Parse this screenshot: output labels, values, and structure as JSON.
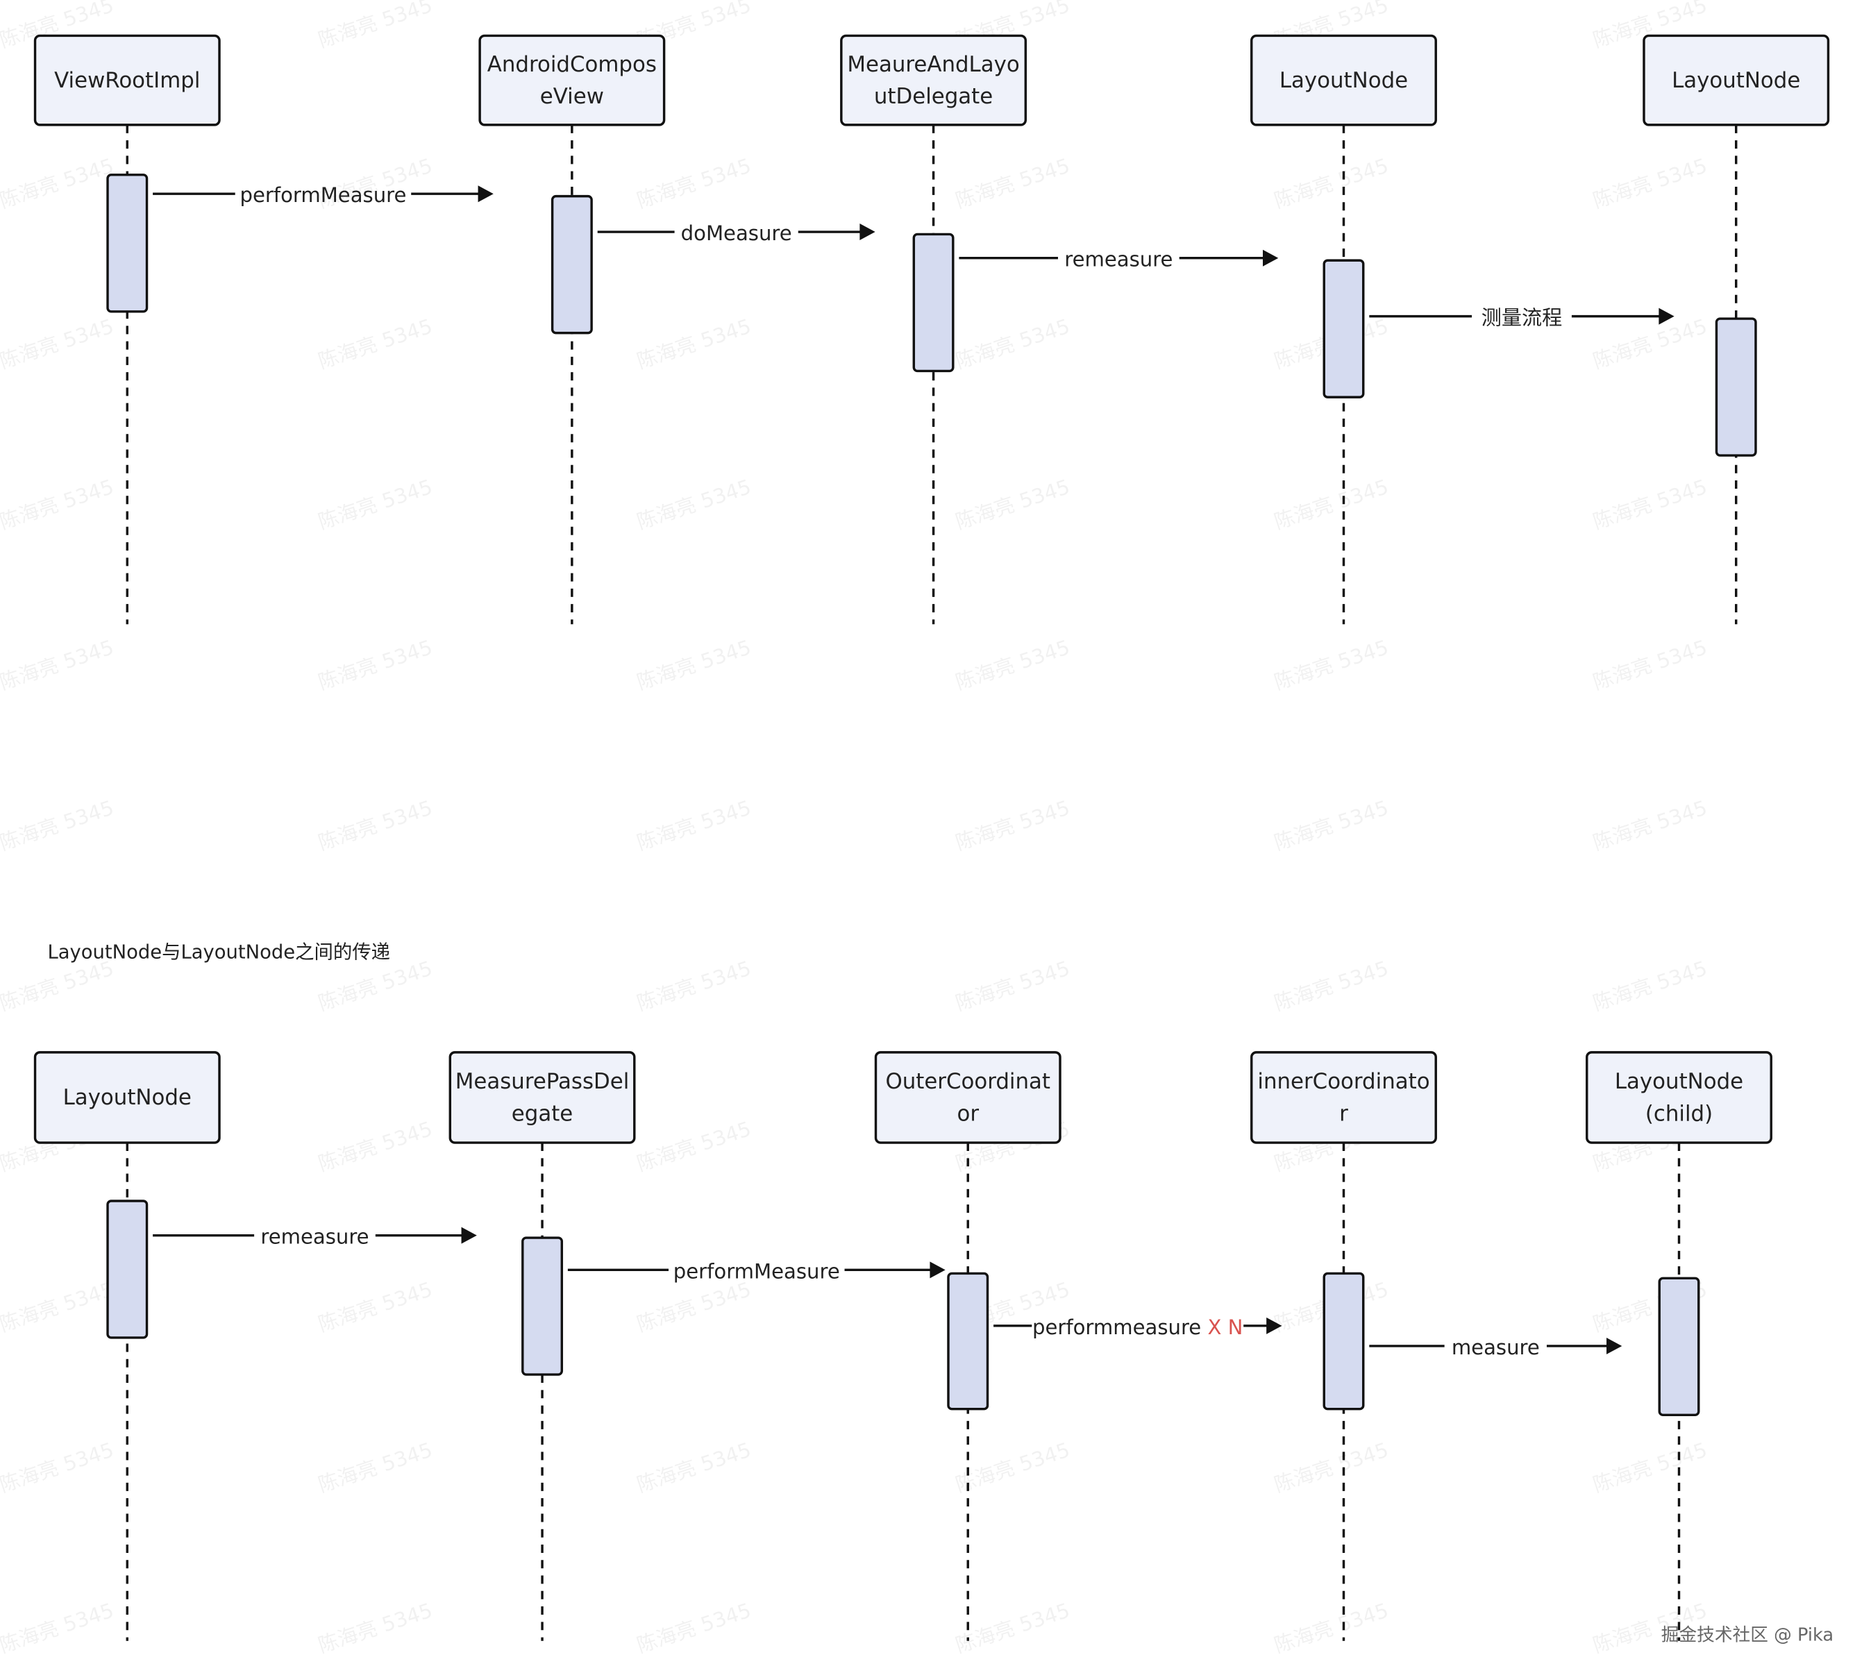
{
  "colors": {
    "participant_fill": "#eff2fa",
    "activation_fill": "#d5dbf0",
    "line": "#111111",
    "highlight": "#d9534f"
  },
  "diagram1": {
    "participants": [
      {
        "label": [
          "ViewRootImpl"
        ]
      },
      {
        "label": [
          "AndroidCompos",
          "eView"
        ]
      },
      {
        "label": [
          "MeaureAndLayo",
          "utDelegate"
        ]
      },
      {
        "label": [
          "LayoutNode"
        ]
      },
      {
        "label": [
          "LayoutNode"
        ]
      }
    ],
    "messages": [
      {
        "from": 0,
        "to": 1,
        "label": "performMeasure"
      },
      {
        "from": 1,
        "to": 2,
        "label": "doMeasure"
      },
      {
        "from": 2,
        "to": 3,
        "label": "remeasure"
      },
      {
        "from": 3,
        "to": 4,
        "label": "测量流程"
      }
    ]
  },
  "caption": "LayoutNode与LayoutNode之间的传递",
  "diagram2": {
    "participants": [
      {
        "label": [
          "LayoutNode"
        ]
      },
      {
        "label": [
          "MeasurePassDel",
          "egate"
        ]
      },
      {
        "label": [
          "OuterCoordinat",
          "or"
        ]
      },
      {
        "label": [
          "innerCoordinato",
          "r"
        ]
      },
      {
        "label": [
          "LayoutNode",
          "(child)"
        ]
      }
    ],
    "messages": [
      {
        "from": 0,
        "to": 1,
        "label": "remeasure"
      },
      {
        "from": 1,
        "to": 2,
        "label": "performMeasure"
      },
      {
        "from": 2,
        "to": 3,
        "label": "performmeasure",
        "suffix": " X N"
      },
      {
        "from": 3,
        "to": 4,
        "label": "measure"
      }
    ]
  },
  "watermark": "陈海亮 5345",
  "footer_watermark": "掘金技术社区 @ Pika"
}
